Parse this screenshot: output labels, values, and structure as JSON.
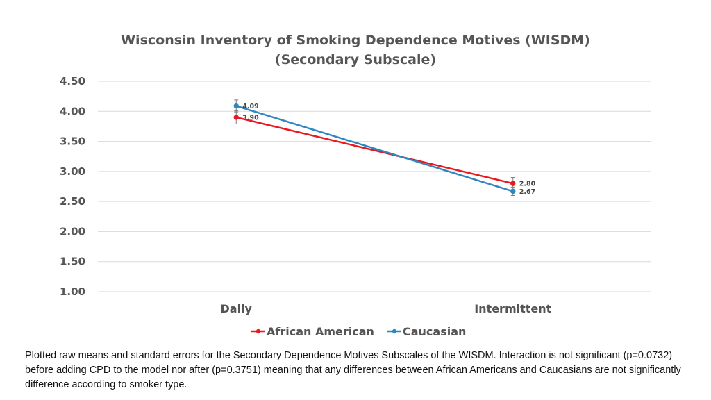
{
  "chart_data": {
    "type": "line",
    "title": "Wisconsin Inventory of Smoking Dependence Motives (WISDM)",
    "subtitle": "(Secondary Subscale)",
    "xlabel": "",
    "ylabel": "",
    "categories": [
      "Daily",
      "Intermittent"
    ],
    "ylim": [
      1.0,
      4.5
    ],
    "yticks": [
      "4.50",
      "4.00",
      "3.50",
      "3.00",
      "2.50",
      "2.00",
      "1.50",
      "1.00"
    ],
    "grid": true,
    "legend_position": "bottom",
    "series": [
      {
        "name": "African American",
        "color": "#e8191f",
        "values": [
          3.9,
          2.8
        ],
        "labels": [
          "3.90",
          "2.80"
        ],
        "error": [
          0.11,
          0.1
        ]
      },
      {
        "name": "Caucasian",
        "color": "#2f86c0",
        "values": [
          4.09,
          2.67
        ],
        "labels": [
          "4.09",
          "2.67"
        ],
        "error": [
          0.1,
          0.07
        ]
      }
    ]
  },
  "caption": "Plotted raw means and standard errors for the Secondary Dependence Motives Subscales of the WISDM. Interaction is not significant (p=0.0732) before adding CPD to the model nor after (p=0.3751) meaning that any differences between African Americans and Caucasians are not significantly difference according to smoker type."
}
